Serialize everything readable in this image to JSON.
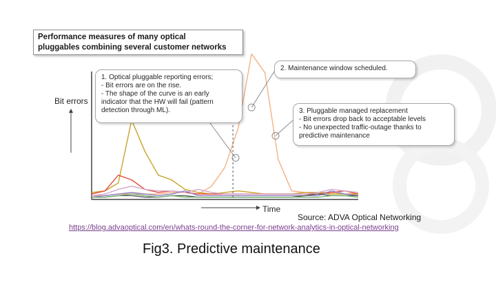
{
  "chart_data": {
    "type": "line",
    "title": "Performance measures of many optical pluggables combining several customer networks",
    "title_lines": [
      "Performance measures of many optical",
      "pluggables combining several customer networks"
    ],
    "xlabel": "Time",
    "ylabel": "Bit errors",
    "x": [
      0,
      5,
      10,
      15,
      20,
      25,
      30,
      35,
      40,
      45,
      50,
      55,
      60,
      65,
      70,
      75,
      80,
      85,
      90,
      95,
      100
    ],
    "xlim": [
      0,
      100
    ],
    "ylim": [
      0,
      100
    ],
    "grid": false,
    "series": [
      {
        "color": "#f4b183",
        "values": [
          2,
          2,
          3,
          3,
          3,
          3,
          4,
          4,
          3,
          8,
          20,
          45,
          92,
          80,
          25,
          5,
          4,
          4,
          4,
          3,
          3
        ]
      },
      {
        "color": "#c9a227",
        "values": [
          4,
          5,
          10,
          50,
          30,
          15,
          12,
          6,
          4,
          3,
          4,
          5,
          4,
          3,
          3,
          3,
          4,
          4,
          3,
          3,
          3
        ]
      },
      {
        "color": "#e74c3c",
        "values": [
          3,
          5,
          15,
          12,
          6,
          4,
          5,
          4,
          3,
          3,
          3,
          3,
          3,
          3,
          3,
          3,
          3,
          3,
          4,
          5,
          3
        ]
      },
      {
        "color": "#d4a5c8",
        "values": [
          2,
          3,
          6,
          8,
          6,
          5,
          5,
          4,
          6,
          4,
          3,
          3,
          3,
          3,
          3,
          3,
          3,
          4,
          6,
          5,
          4
        ]
      },
      {
        "color": "#8e7cc3",
        "values": [
          1,
          2,
          3,
          4,
          3,
          2,
          3,
          5,
          2,
          2,
          2,
          2,
          2,
          2,
          2,
          2,
          2,
          2,
          5,
          3,
          2
        ]
      },
      {
        "color": "#555555",
        "values": [
          1,
          1,
          2,
          2,
          1,
          1,
          2,
          2,
          1,
          1,
          1,
          1,
          1,
          1,
          1,
          1,
          2,
          3,
          2,
          2,
          2
        ]
      },
      {
        "color": "#6fb06f",
        "values": [
          1,
          1,
          2,
          3,
          2,
          1,
          2,
          1,
          1,
          1,
          1,
          1,
          1,
          1,
          1,
          1,
          1,
          1,
          2,
          2,
          1
        ]
      }
    ],
    "annotations": [
      {
        "id": "callout-1",
        "lines": [
          "1. Optical pluggable reporting errors;",
          "- Bit errors are on the rise.",
          "- The shape of the curve is an early",
          "indicator that the HW will fail (pattern",
          "detection through ML)."
        ],
        "target_x": 54,
        "target_y": 26
      },
      {
        "id": "callout-2",
        "lines": [
          "2. Maintenance window scheduled."
        ],
        "target_x": 60,
        "target_y": 58
      },
      {
        "id": "callout-3",
        "lines": [
          "3. Pluggable managed replacement",
          "- Bit errors drop back to acceptable levels",
          "- No unexpected traffic-outage thanks to",
          "predictive maintenance"
        ],
        "target_x": 69,
        "target_y": 40
      }
    ],
    "vertical_marker_x": 53
  },
  "source": "Source: ADVA Optical Networking",
  "url": "https://blog.advaoptical.com/en/whats-round-the-corner-for-network-analytics-in-optical-networking",
  "caption": "Fig3. Predictive maintenance"
}
